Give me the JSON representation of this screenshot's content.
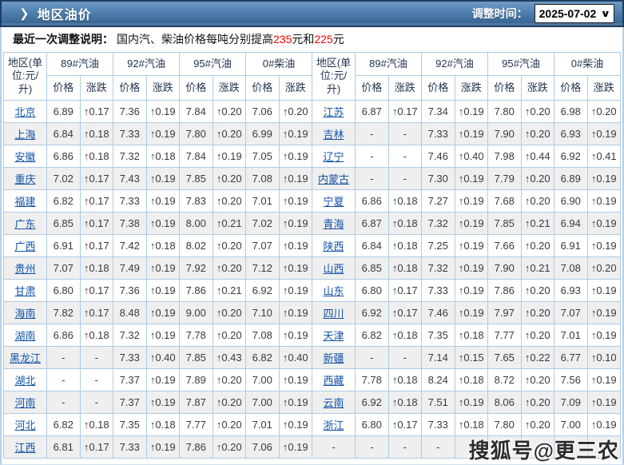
{
  "header": {
    "chevron_icon": "❯",
    "title": "地区油价",
    "adjust_time_label": "调整时间：",
    "adjust_date": "2025-07-02"
  },
  "notice": {
    "label": "最近一次调整说明：",
    "segment1": "国内汽、柴油价格每吨分别提高",
    "highlight1": "235",
    "segment2": "元和",
    "highlight2": "225",
    "segment3": "元"
  },
  "table": {
    "region_header": "地区(单位:元/升)",
    "fuel_headers": [
      "89#汽油",
      "92#汽油",
      "95#汽油",
      "0#柴油"
    ],
    "price_label": "价格",
    "change_label": "涨跌",
    "rows": [
      {
        "l": [
          "北京",
          "6.89",
          "↑0.17",
          "7.36",
          "↑0.19",
          "7.84",
          "↑0.20",
          "7.06",
          "↑0.20"
        ],
        "r": [
          "江苏",
          "6.87",
          "↑0.17",
          "7.34",
          "↑0.19",
          "7.80",
          "↑0.20",
          "6.98",
          "↑0.20"
        ]
      },
      {
        "l": [
          "上海",
          "6.84",
          "↑0.18",
          "7.33",
          "↑0.19",
          "7.80",
          "↑0.20",
          "6.99",
          "↑0.19"
        ],
        "r": [
          "吉林",
          "-",
          "-",
          "7.33",
          "↑0.19",
          "7.90",
          "↑0.20",
          "6.93",
          "↑0.19"
        ]
      },
      {
        "l": [
          "安徽",
          "6.86",
          "↑0.18",
          "7.32",
          "↑0.18",
          "7.84",
          "↑0.19",
          "7.05",
          "↑0.19"
        ],
        "r": [
          "辽宁",
          "-",
          "-",
          "7.46",
          "↑0.40",
          "7.98",
          "↑0.44",
          "6.92",
          "↑0.41"
        ]
      },
      {
        "l": [
          "重庆",
          "7.02",
          "↑0.17",
          "7.43",
          "↑0.19",
          "7.85",
          "↑0.20",
          "7.08",
          "↑0.19"
        ],
        "r": [
          "内蒙古",
          "-",
          "-",
          "7.30",
          "↑0.19",
          "7.79",
          "↑0.20",
          "6.89",
          "↑0.19"
        ]
      },
      {
        "l": [
          "福建",
          "6.82",
          "↑0.17",
          "7.33",
          "↑0.19",
          "7.83",
          "↑0.20",
          "7.01",
          "↑0.19"
        ],
        "r": [
          "宁夏",
          "6.86",
          "↑0.18",
          "7.27",
          "↑0.19",
          "7.68",
          "↑0.20",
          "6.90",
          "↑0.19"
        ]
      },
      {
        "l": [
          "广东",
          "6.85",
          "↑0.17",
          "7.38",
          "↑0.19",
          "8.00",
          "↑0.21",
          "7.02",
          "↑0.19"
        ],
        "r": [
          "青海",
          "6.87",
          "↑0.18",
          "7.32",
          "↑0.19",
          "7.85",
          "↑0.21",
          "6.94",
          "↑0.19"
        ]
      },
      {
        "l": [
          "广西",
          "6.91",
          "↑0.17",
          "7.42",
          "↑0.18",
          "8.02",
          "↑0.20",
          "7.07",
          "↑0.19"
        ],
        "r": [
          "陕西",
          "6.84",
          "↑0.18",
          "7.25",
          "↑0.19",
          "7.66",
          "↑0.20",
          "6.91",
          "↑0.19"
        ]
      },
      {
        "l": [
          "贵州",
          "7.07",
          "↑0.18",
          "7.49",
          "↑0.19",
          "7.92",
          "↑0.20",
          "7.12",
          "↑0.19"
        ],
        "r": [
          "山西",
          "6.85",
          "↑0.18",
          "7.32",
          "↑0.19",
          "7.90",
          "↑0.21",
          "7.08",
          "↑0.20"
        ]
      },
      {
        "l": [
          "甘肃",
          "6.80",
          "↑0.17",
          "7.36",
          "↑0.19",
          "7.86",
          "↑0.21",
          "6.92",
          "↑0.19"
        ],
        "r": [
          "山东",
          "6.80",
          "↑0.17",
          "7.33",
          "↑0.19",
          "7.86",
          "↑0.20",
          "6.93",
          "↑0.19"
        ]
      },
      {
        "l": [
          "海南",
          "7.82",
          "↑0.17",
          "8.48",
          "↑0.19",
          "9.00",
          "↑0.20",
          "7.10",
          "↑0.19"
        ],
        "r": [
          "四川",
          "6.92",
          "↑0.17",
          "7.46",
          "↑0.19",
          "7.97",
          "↑0.20",
          "7.07",
          "↑0.19"
        ]
      },
      {
        "l": [
          "湖南",
          "6.86",
          "↑0.18",
          "7.32",
          "↑0.19",
          "7.78",
          "↑0.20",
          "7.08",
          "↑0.19"
        ],
        "r": [
          "天津",
          "6.82",
          "↑0.18",
          "7.35",
          "↑0.18",
          "7.77",
          "↑0.20",
          "7.01",
          "↑0.19"
        ]
      },
      {
        "l": [
          "黑龙江",
          "-",
          "-",
          "7.33",
          "↑0.40",
          "7.85",
          "↑0.43",
          "6.82",
          "↑0.40"
        ],
        "r": [
          "新疆",
          "-",
          "-",
          "7.14",
          "↑0.15",
          "7.65",
          "↑0.22",
          "6.77",
          "↑0.10"
        ]
      },
      {
        "l": [
          "湖北",
          "-",
          "-",
          "7.37",
          "↑0.19",
          "7.89",
          "↑0.20",
          "7.00",
          "↑0.19"
        ],
        "r": [
          "西藏",
          "7.78",
          "↑0.18",
          "8.24",
          "↑0.18",
          "8.72",
          "↑0.20",
          "7.56",
          "↑0.19"
        ]
      },
      {
        "l": [
          "河南",
          "-",
          "-",
          "7.37",
          "↑0.19",
          "7.87",
          "↑0.20",
          "7.00",
          "↑0.19"
        ],
        "r": [
          "云南",
          "6.92",
          "↑0.18",
          "7.51",
          "↑0.19",
          "8.06",
          "↑0.20",
          "7.09",
          "↑0.19"
        ]
      },
      {
        "l": [
          "河北",
          "6.82",
          "↑0.18",
          "7.35",
          "↑0.18",
          "7.77",
          "↑0.20",
          "7.01",
          "↑0.19"
        ],
        "r": [
          "浙江",
          "6.80",
          "↑0.17",
          "7.33",
          "↑0.18",
          "7.80",
          "↑0.20",
          "7.00",
          "↑0.19"
        ]
      },
      {
        "l": [
          "江西",
          "6.81",
          "↑0.17",
          "7.33",
          "↑0.19",
          "7.86",
          "↑0.20",
          "7.06",
          "↑0.19"
        ],
        "r": [
          "-",
          "-",
          "-",
          "-",
          "-",
          "-",
          "-",
          "-",
          "-"
        ]
      }
    ]
  },
  "watermark": "搜狐号@更三农",
  "colors": {
    "change_red": "#ff0000",
    "region_link_blue": "#1553a8",
    "titlebar_top": "#6f9cc6",
    "titlebar_bottom": "#35618f",
    "table_border": "#aecbe5",
    "zebra_gray": "#efefef"
  }
}
